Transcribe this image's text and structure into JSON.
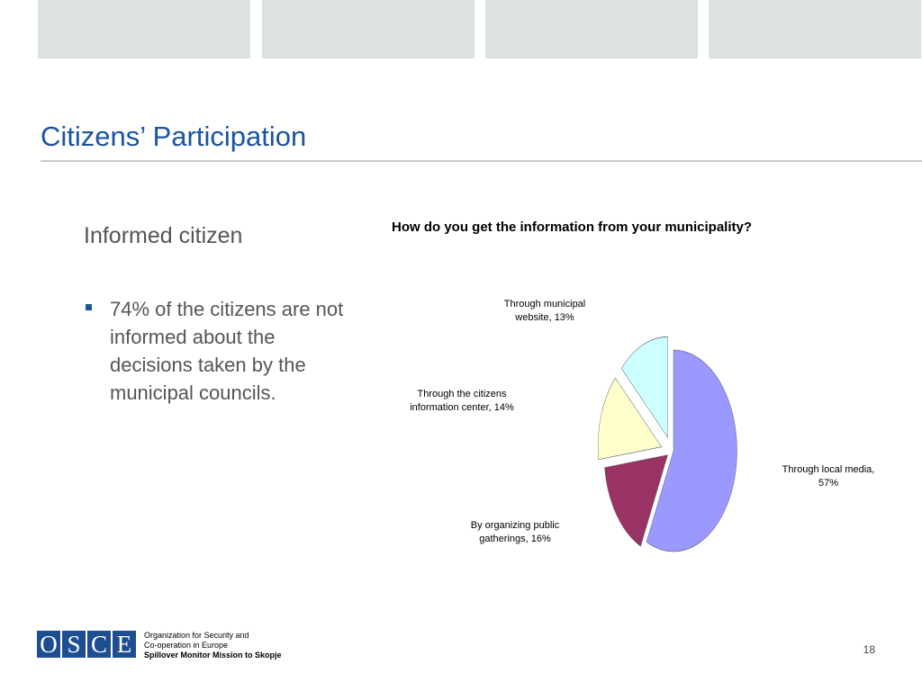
{
  "slide": {
    "title": "Citizens’ Participation",
    "subheading": "Informed citizen",
    "bullet": "74% of the citizens are not informed about the decisions taken by the municipal councils.",
    "page_number": "18"
  },
  "footer": {
    "logo_letters": [
      "O",
      "S",
      "C",
      "E"
    ],
    "line1": "Organization for Security and",
    "line2": "Co-operation in Europe",
    "line3": "Spillover Monitor Mission to Skopje"
  },
  "colors": {
    "title": "#1a55a0",
    "tab": "#dde1e1",
    "logo": "#1e4e92"
  },
  "chart_data": {
    "type": "pie",
    "title": "How do you get the information from your municipality?",
    "slices": [
      {
        "label": "Through local media,",
        "value_label": "57%",
        "value": 57,
        "color": "#9999ff"
      },
      {
        "label": "By organizing public",
        "value_label": "gatherings, 16%",
        "value": 16,
        "color": "#993366"
      },
      {
        "label": "Through the citizens",
        "value_label": "information center, 14%",
        "value": 14,
        "color": "#ffffcc"
      },
      {
        "label": "Through municipal",
        "value_label": "website, 13%",
        "value": 13,
        "color": "#ccffff"
      }
    ],
    "exploded": true,
    "legend": "none"
  }
}
